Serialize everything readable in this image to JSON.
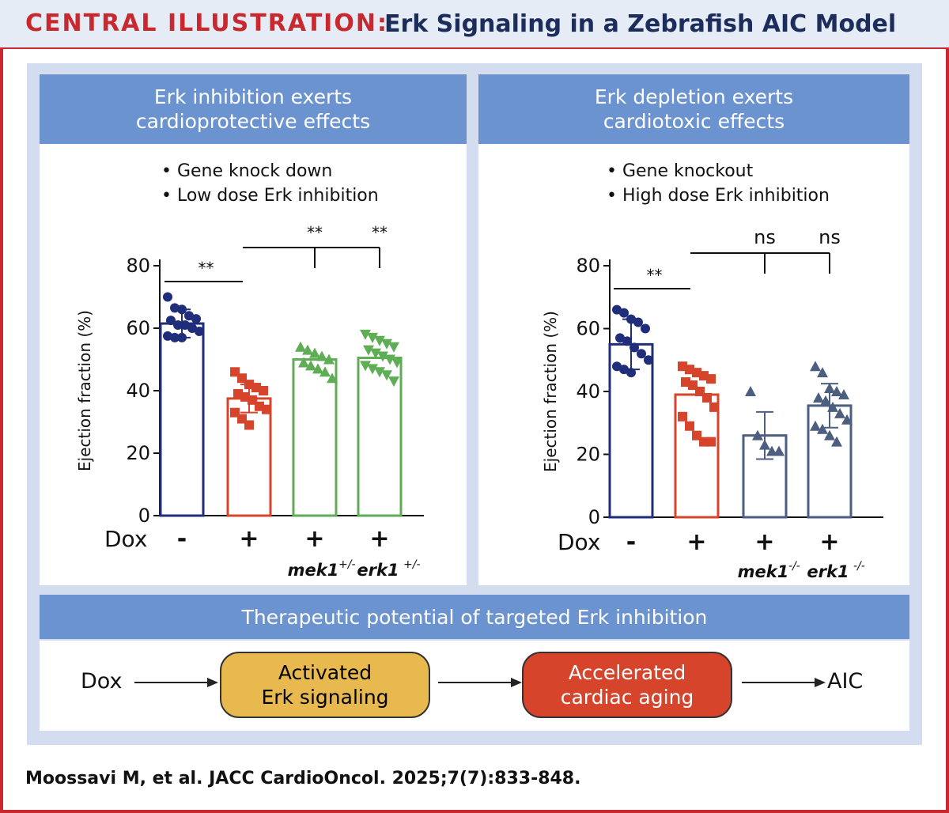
{
  "header": {
    "label_red": "CENTRAL ILLUSTRATION:",
    "title": "Erk Signaling in a Zebrafish AIC Model"
  },
  "left_panel": {
    "title_line1": "Erk inhibition exerts",
    "title_line2": "cardioprotective effects",
    "bullet1": "• Gene knock down",
    "bullet2": "• Low dose Erk inhibition"
  },
  "right_panel": {
    "title_line1": "Erk depletion exerts",
    "title_line2": "cardiotoxic effects",
    "bullet1": "• Gene knockout",
    "bullet2": "• High dose Erk inhibition"
  },
  "therapeutic": {
    "title": "Therapeutic potential of targeted Erk inhibition",
    "dox": "Dox",
    "box1_line1": "Activated",
    "box1_line2": "Erk signaling",
    "box2_line1": "Accelerated",
    "box2_line2": "cardiac aging",
    "end": "AIC"
  },
  "citation": "Moossavi M, et al. JACC CardioOncol. 2025;7(7):833-848.",
  "chart_data": [
    {
      "type": "bar",
      "ylabel": "Ejection fraction (%)",
      "ylim": [
        0,
        80
      ],
      "yticks": [
        "0",
        "20",
        "40",
        "60",
        "80"
      ],
      "row_label": "Dox",
      "categories": [
        "-",
        "+",
        "+",
        "+"
      ],
      "genotypes": [
        "",
        "",
        "mek1",
        "erk1"
      ],
      "genotype_sup": [
        "",
        "",
        "+/-",
        "+/-"
      ],
      "values": [
        61.5,
        37.5,
        50,
        50.5
      ],
      "sd": [
        4.5,
        4.5,
        0,
        0
      ],
      "colors": [
        "#1f2d7a",
        "#d6442c",
        "#5fae55",
        "#5fae55"
      ],
      "markers": [
        "circle",
        "square",
        "triangle",
        "triangle-down"
      ],
      "points": [
        [
          70,
          66.5,
          66,
          64,
          63,
          62.5,
          61,
          61,
          60,
          59,
          57.5,
          57,
          57
        ],
        [
          46,
          44,
          42,
          41,
          40,
          39,
          38,
          37,
          35,
          34,
          33,
          31,
          29
        ],
        [
          54,
          53,
          52,
          51,
          50,
          49,
          48,
          47,
          46,
          44
        ],
        [
          58,
          57,
          56,
          55,
          54,
          53,
          52,
          51,
          50,
          49,
          48,
          47,
          46,
          45,
          43
        ]
      ],
      "significance": {
        "control_vs_dox": "**",
        "brackets": [
          "**",
          "**"
        ]
      }
    },
    {
      "type": "bar",
      "ylabel": "Ejection fraction (%)",
      "ylim": [
        0,
        80
      ],
      "yticks": [
        "0",
        "20",
        "40",
        "60",
        "80"
      ],
      "row_label": "Dox",
      "categories": [
        "-",
        "+",
        "+",
        "+"
      ],
      "genotypes": [
        "",
        "",
        "mek1",
        "erk1"
      ],
      "genotype_sup": [
        "",
        "",
        "-/-",
        "-/-"
      ],
      "values": [
        55,
        39,
        26,
        35.5
      ],
      "sd": [
        8,
        0,
        7.5,
        7
      ],
      "colors": [
        "#1f2d7a",
        "#d6442c",
        "#4d5f80",
        "#4d5f80"
      ],
      "markers": [
        "circle",
        "square",
        "triangle",
        "triangle"
      ],
      "points": [
        [
          66,
          65,
          63,
          62,
          60,
          57,
          56,
          54,
          52,
          50,
          48,
          47,
          46
        ],
        [
          48,
          47,
          46,
          45,
          44,
          43,
          42,
          40,
          38,
          35,
          32,
          29,
          26,
          24,
          24
        ],
        [
          40,
          26,
          23,
          21,
          21
        ],
        [
          48,
          46,
          41,
          40,
          39,
          38,
          37,
          35,
          33,
          31,
          29,
          28,
          26,
          24
        ]
      ],
      "significance": {
        "control_vs_dox": "**",
        "brackets": [
          "ns",
          "ns"
        ]
      }
    }
  ]
}
